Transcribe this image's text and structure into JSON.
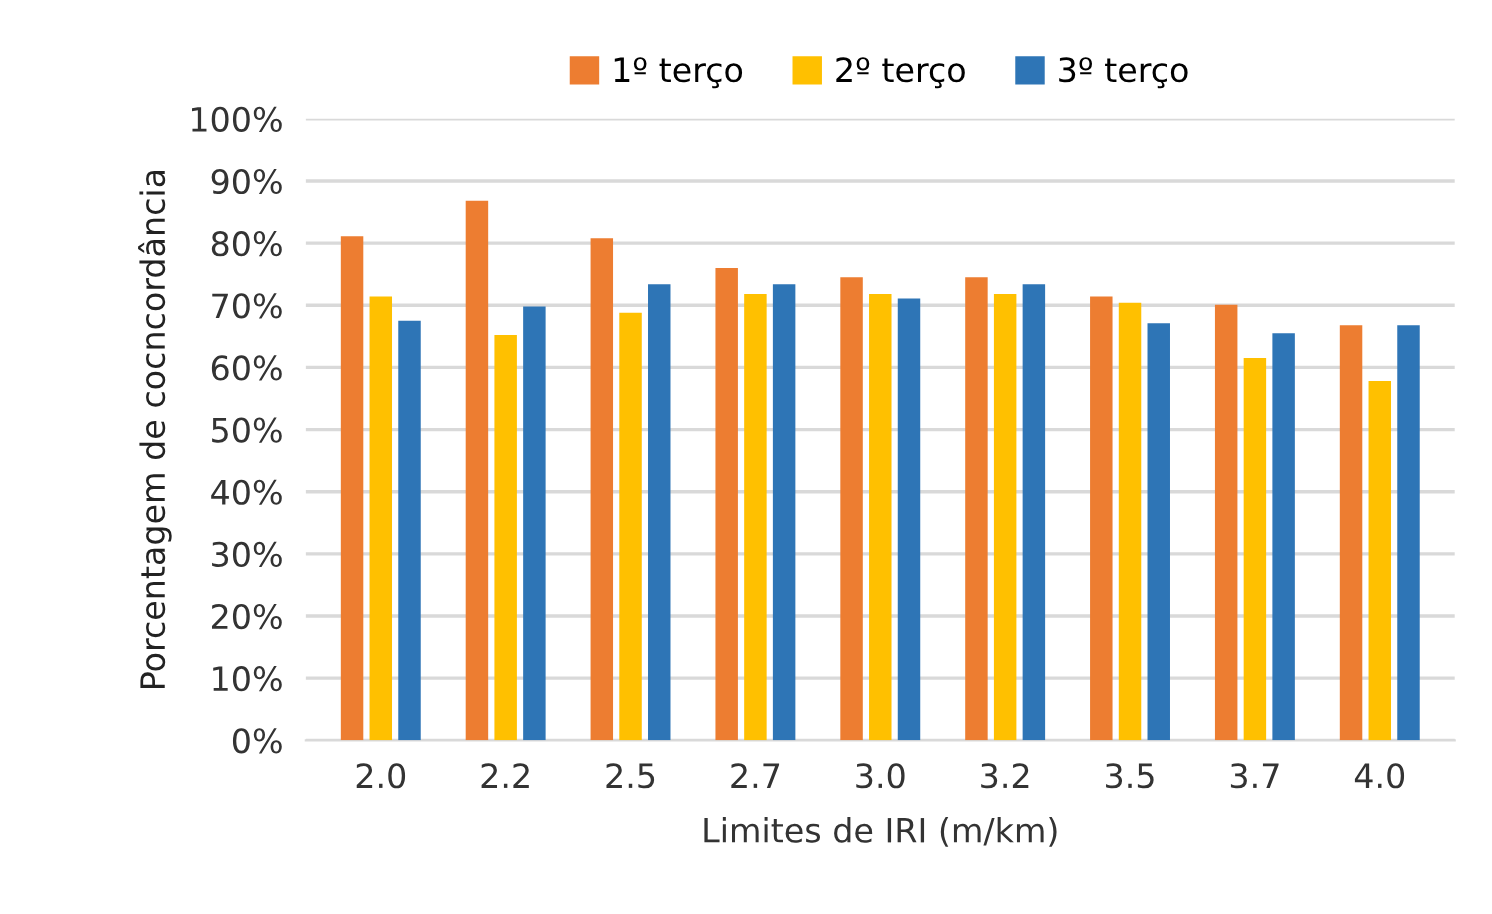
{
  "chart_data": {
    "type": "bar",
    "xlabel": "Limites de IRI (m/km)",
    "ylabel": "Porcentagem de cocncordância",
    "categories": [
      "2.0",
      "2.2",
      "2.5",
      "2.7",
      "3.0",
      "3.2",
      "3.5",
      "3.7",
      "4.0"
    ],
    "series": [
      {
        "name": "1º terço",
        "color": "#ed7d31",
        "values": [
          81.1,
          86.8,
          80.8,
          76.0,
          74.5,
          74.5,
          71.4,
          70.1,
          66.8
        ]
      },
      {
        "name": "2º terço",
        "color": "#ffc000",
        "values": [
          71.4,
          65.2,
          68.8,
          71.8,
          71.8,
          71.8,
          70.4,
          61.5,
          57.8
        ]
      },
      {
        "name": "3º terço",
        "color": "#2e75b6",
        "values": [
          67.5,
          69.8,
          73.4,
          73.4,
          71.1,
          73.4,
          67.1,
          65.5,
          66.8
        ]
      }
    ],
    "ylim": [
      0,
      100
    ],
    "yticks": [
      {
        "value": 0,
        "label": "0%"
      },
      {
        "value": 10,
        "label": "10%"
      },
      {
        "value": 20,
        "label": "20%"
      },
      {
        "value": 30,
        "label": "30%"
      },
      {
        "value": 40,
        "label": "40%"
      },
      {
        "value": 50,
        "label": "50%"
      },
      {
        "value": 60,
        "label": "60%"
      },
      {
        "value": 70,
        "label": "70%"
      },
      {
        "value": 80,
        "label": "80%"
      },
      {
        "value": 90,
        "label": "90%"
      },
      {
        "value": 100,
        "label": "100%"
      }
    ],
    "grid": "y",
    "legend": "top"
  }
}
